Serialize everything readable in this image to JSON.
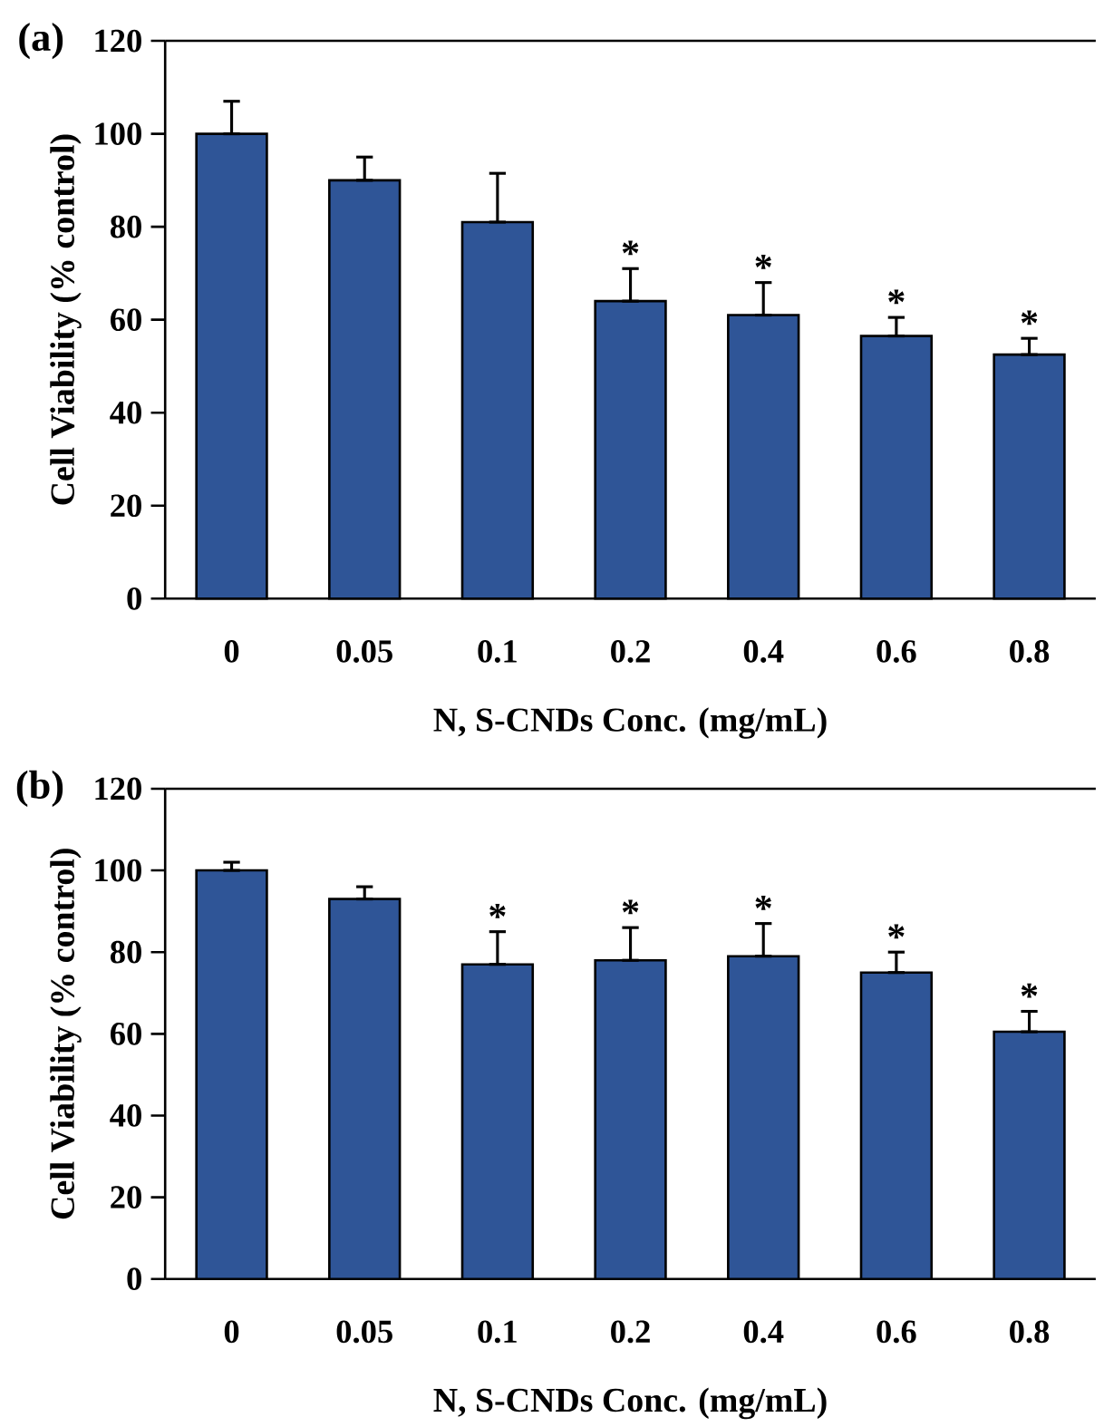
{
  "chart_data": [
    {
      "type": "bar",
      "title": "(a)",
      "xlabel": "N, S-CNDs Conc. (mg/mL)",
      "ylabel": "Cell Viability (% control)",
      "categories": [
        "0",
        "0.05",
        "0.1",
        "0.2",
        "0.4",
        "0.6",
        "0.8"
      ],
      "values": [
        100,
        90,
        81,
        64,
        61,
        56.5,
        52.5
      ],
      "errors": [
        [
          100,
          107
        ],
        [
          90,
          95
        ],
        [
          81,
          91.5
        ],
        [
          64,
          71
        ],
        [
          61,
          68
        ],
        [
          56.5,
          60.5
        ],
        [
          52.5,
          56
        ]
      ],
      "color": "#2f5597",
      "ylim": [
        0,
        120
      ],
      "yticks": [
        0,
        20,
        40,
        60,
        80,
        100,
        120
      ],
      "annotations": [
        {
          "text": "*",
          "x": "0.2",
          "y": 71
        },
        {
          "text": "*",
          "x": "0.4",
          "y": 68
        },
        {
          "text": "*",
          "x": "0.6",
          "y": 60.5
        },
        {
          "text": "*",
          "x": "0.8",
          "y": 56
        }
      ]
    },
    {
      "type": "bar",
      "title": "(b)",
      "xlabel": "N, S-CNDs Conc. (mg/mL)",
      "ylabel": "Cell Viability (% control)",
      "categories": [
        "0",
        "0.05",
        "0.1",
        "0.2",
        "0.4",
        "0.6",
        "0.8"
      ],
      "values": [
        100,
        93,
        77,
        78,
        79,
        75,
        60.5
      ],
      "errors": [
        [
          100,
          102
        ],
        [
          93,
          96
        ],
        [
          77,
          85
        ],
        [
          78,
          86
        ],
        [
          79,
          87
        ],
        [
          75,
          80
        ],
        [
          60.5,
          65.5
        ]
      ],
      "color": "#2f5597",
      "ylim": [
        0,
        120
      ],
      "yticks": [
        0,
        20,
        40,
        60,
        80,
        100,
        120
      ],
      "annotations": [
        {
          "text": "*",
          "x": "0.1",
          "y": 85
        },
        {
          "text": "*",
          "x": "0.2",
          "y": 86
        },
        {
          "text": "*",
          "x": "0.4",
          "y": 87
        },
        {
          "text": "*",
          "x": "0.6",
          "y": 80
        },
        {
          "text": "*",
          "x": "0.8",
          "y": 65.5
        }
      ]
    }
  ]
}
